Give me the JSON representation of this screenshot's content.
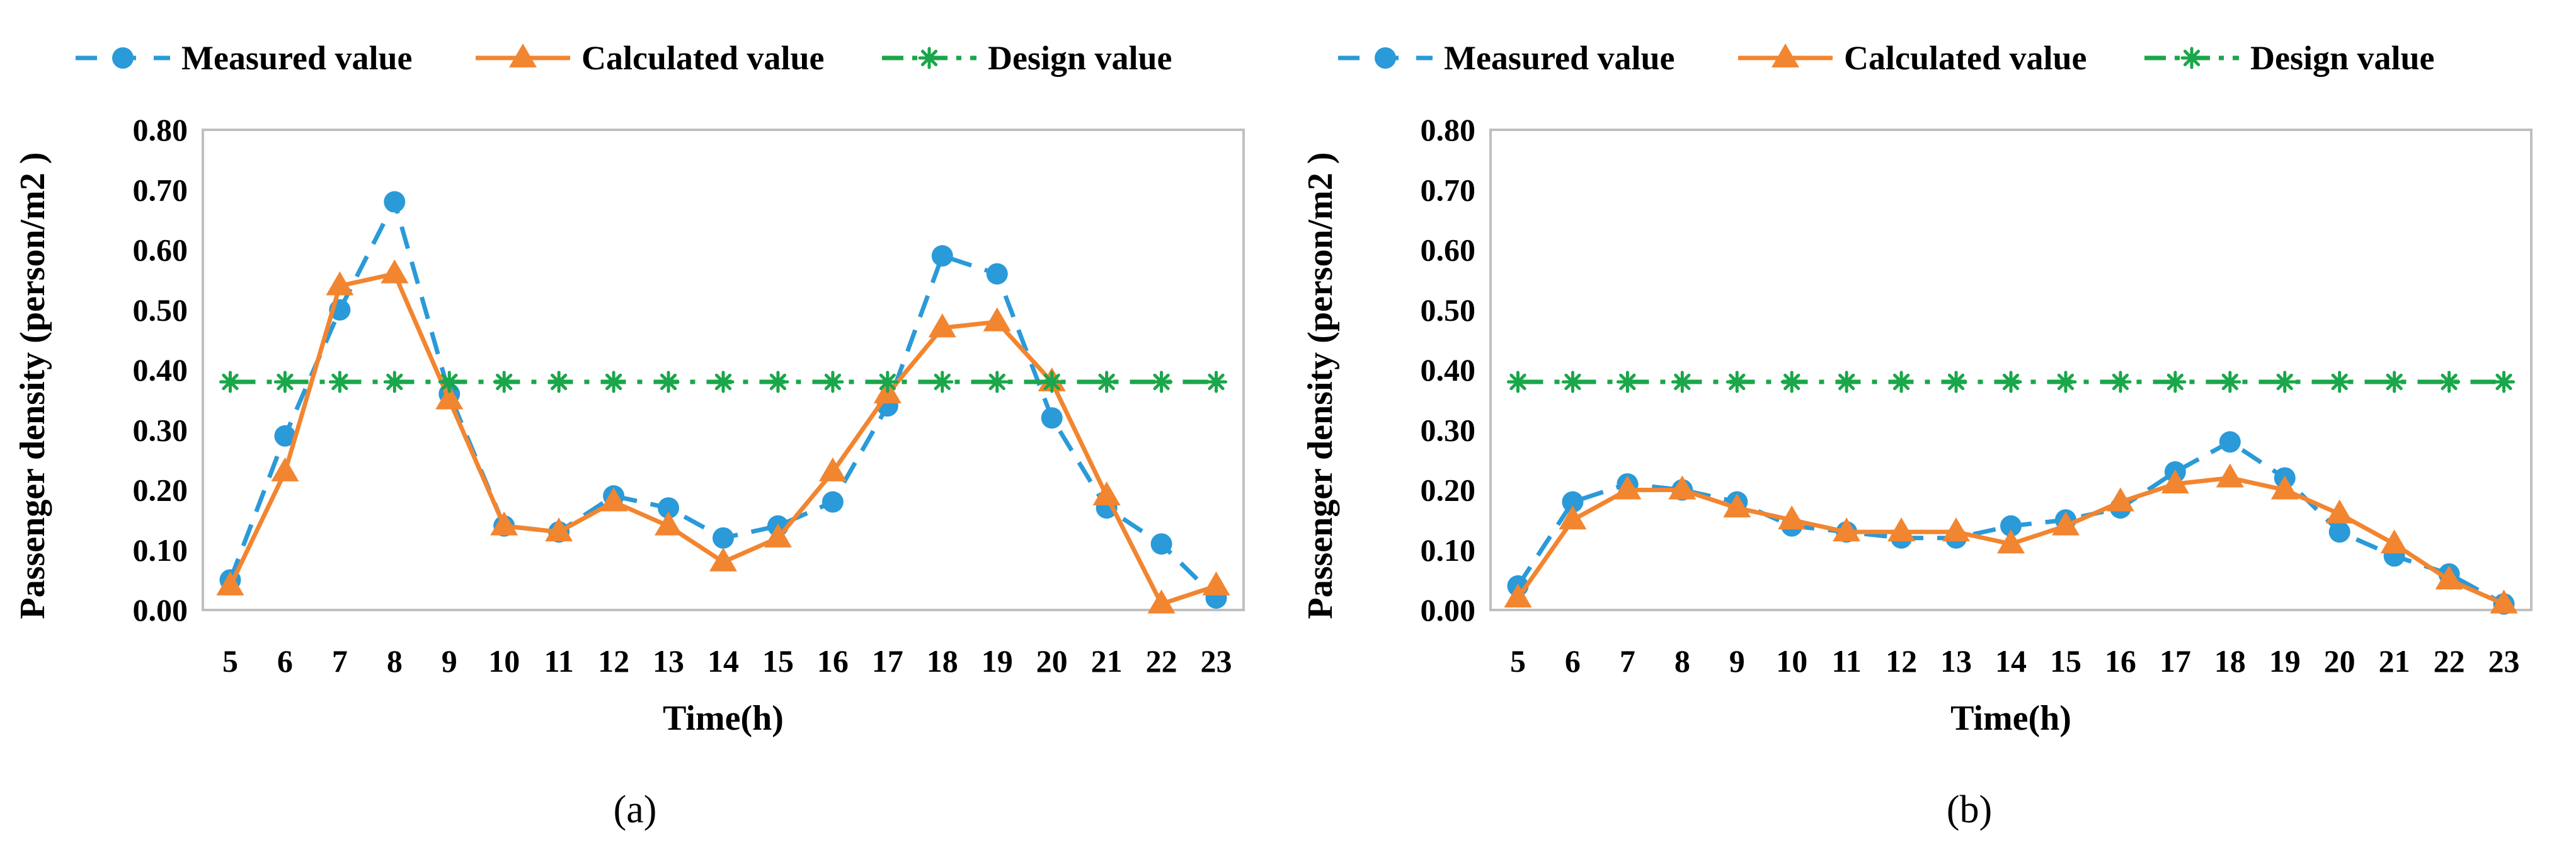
{
  "chart_data": [
    {
      "type": "line",
      "panel_label": "(a)",
      "xlabel": "Time(h)",
      "ylabel": "Passenger density (person/m2 )",
      "ylim": [
        0,
        0.8
      ],
      "yticks": [
        "0.00",
        "0.10",
        "0.20",
        "0.30",
        "0.40",
        "0.50",
        "0.60",
        "0.70",
        "0.80"
      ],
      "categories": [
        "5",
        "6",
        "7",
        "8",
        "9",
        "10",
        "11",
        "12",
        "13",
        "14",
        "15",
        "16",
        "17",
        "18",
        "19",
        "20",
        "21",
        "22",
        "23"
      ],
      "legend_position": "top",
      "grid": false,
      "series": [
        {
          "name": "Measured value",
          "color": "#2a9ad8",
          "marker": "circle",
          "dash": "dashed",
          "values": [
            0.05,
            0.29,
            0.5,
            0.68,
            0.36,
            0.14,
            0.13,
            0.19,
            0.17,
            0.12,
            0.14,
            0.18,
            0.34,
            0.59,
            0.56,
            0.32,
            0.17,
            0.11,
            0.02
          ]
        },
        {
          "name": "Calculated value",
          "color": "#f28530",
          "marker": "triangle",
          "dash": "solid",
          "values": [
            0.04,
            0.23,
            0.54,
            0.56,
            0.35,
            0.14,
            0.13,
            0.18,
            0.14,
            0.08,
            0.12,
            0.23,
            0.36,
            0.47,
            0.48,
            0.38,
            0.19,
            0.01,
            0.04
          ]
        },
        {
          "name": "Design value",
          "color": "#1aa64a",
          "marker": "asterisk",
          "dash": "dashdot",
          "values": [
            0.38,
            0.38,
            0.38,
            0.38,
            0.38,
            0.38,
            0.38,
            0.38,
            0.38,
            0.38,
            0.38,
            0.38,
            0.38,
            0.38,
            0.38,
            0.38,
            0.38,
            0.38,
            0.38
          ]
        }
      ]
    },
    {
      "type": "line",
      "panel_label": "(b)",
      "xlabel": "Time(h)",
      "ylabel": "Passenger density (person/m2 )",
      "ylim": [
        0,
        0.8
      ],
      "yticks": [
        "0.00",
        "0.10",
        "0.20",
        "0.30",
        "0.40",
        "0.50",
        "0.60",
        "0.70",
        "0.80"
      ],
      "categories": [
        "5",
        "6",
        "7",
        "8",
        "9",
        "10",
        "11",
        "12",
        "13",
        "14",
        "15",
        "16",
        "17",
        "18",
        "19",
        "20",
        "21",
        "22",
        "23"
      ],
      "legend_position": "top",
      "grid": false,
      "series": [
        {
          "name": "Measured value",
          "color": "#2a9ad8",
          "marker": "circle",
          "dash": "dashed",
          "values": [
            0.04,
            0.18,
            0.21,
            0.2,
            0.18,
            0.14,
            0.13,
            0.12,
            0.12,
            0.14,
            0.15,
            0.17,
            0.23,
            0.28,
            0.22,
            0.13,
            0.09,
            0.06,
            0.01
          ]
        },
        {
          "name": "Calculated value",
          "color": "#f28530",
          "marker": "triangle",
          "dash": "solid",
          "values": [
            0.02,
            0.15,
            0.2,
            0.2,
            0.17,
            0.15,
            0.13,
            0.13,
            0.13,
            0.11,
            0.14,
            0.18,
            0.21,
            0.22,
            0.2,
            0.16,
            0.11,
            0.05,
            0.01
          ]
        },
        {
          "name": "Design value",
          "color": "#1aa64a",
          "marker": "asterisk",
          "dash": "dashdot",
          "values": [
            0.38,
            0.38,
            0.38,
            0.38,
            0.38,
            0.38,
            0.38,
            0.38,
            0.38,
            0.38,
            0.38,
            0.38,
            0.38,
            0.38,
            0.38,
            0.38,
            0.38,
            0.38,
            0.38
          ]
        }
      ]
    }
  ]
}
